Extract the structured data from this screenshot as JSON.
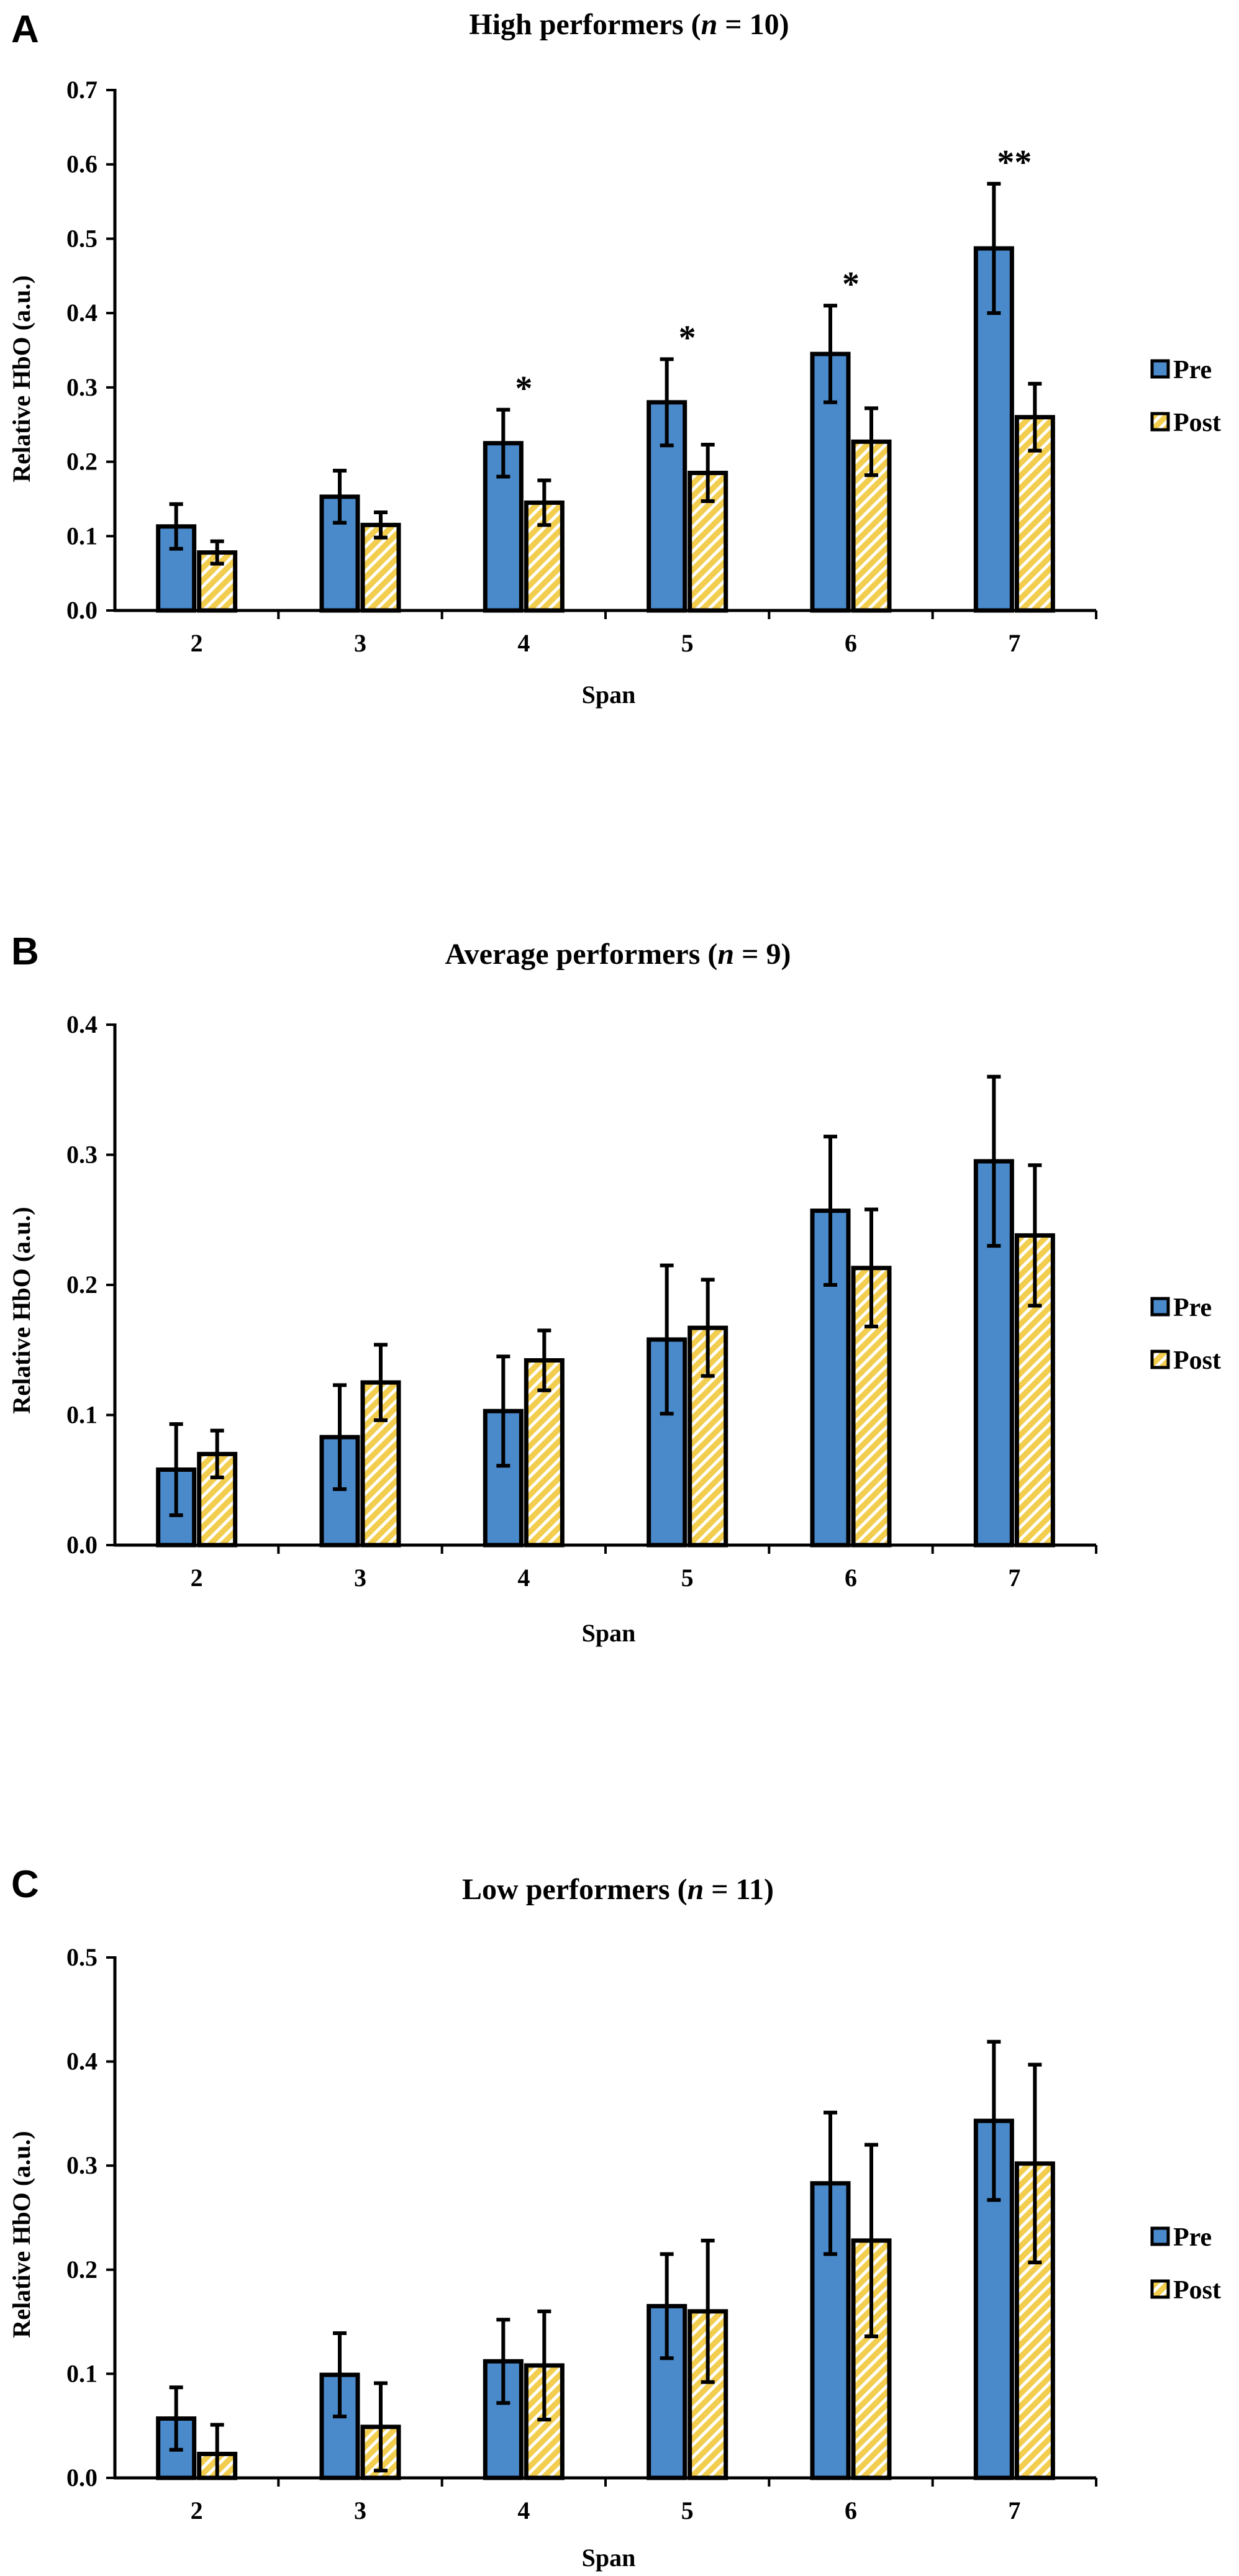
{
  "colors": {
    "pre": "#4a8acb",
    "post_fill": "#f2cd4e",
    "post_stripe": "#ffffff",
    "axis": "#000000"
  },
  "chart_data": [
    {
      "panel": "A",
      "type": "bar",
      "title": "High performers (",
      "title_italic": "n",
      "title_suffix": " = 10)",
      "xlabel": "Span",
      "ylabel": "Relative HbO (a.u.)",
      "ylim": [
        0,
        0.7
      ],
      "yticks": [
        "0.0",
        "0.1",
        "0.2",
        "0.3",
        "0.4",
        "0.5",
        "0.6",
        "0.7"
      ],
      "categories": [
        "2",
        "3",
        "4",
        "5",
        "6",
        "7"
      ],
      "series": [
        {
          "name": "Pre",
          "values": [
            0.113,
            0.153,
            0.225,
            0.28,
            0.345,
            0.487
          ],
          "errors": [
            0.03,
            0.035,
            0.045,
            0.058,
            0.065,
            0.087
          ]
        },
        {
          "name": "Post",
          "values": [
            0.078,
            0.115,
            0.145,
            0.185,
            0.227,
            0.26
          ],
          "errors": [
            0.015,
            0.017,
            0.03,
            0.038,
            0.045,
            0.045
          ]
        }
      ],
      "significance": [
        "",
        "",
        "*",
        "*",
        "*",
        "**"
      ],
      "legend_position": "right"
    },
    {
      "panel": "B",
      "type": "bar",
      "title": "Average performers (",
      "title_italic": "n",
      "title_suffix": " = 9)",
      "xlabel": "Span",
      "ylabel": "Relative HbO (a.u.)",
      "ylim": [
        0,
        0.4
      ],
      "yticks": [
        "0.0",
        "0.1",
        "0.2",
        "0.3",
        "0.4"
      ],
      "categories": [
        "2",
        "3",
        "4",
        "5",
        "6",
        "7"
      ],
      "series": [
        {
          "name": "Pre",
          "values": [
            0.058,
            0.083,
            0.103,
            0.158,
            0.257,
            0.295
          ],
          "errors": [
            0.035,
            0.04,
            0.042,
            0.057,
            0.057,
            0.065
          ]
        },
        {
          "name": "Post",
          "values": [
            0.07,
            0.125,
            0.142,
            0.167,
            0.213,
            0.238
          ],
          "errors": [
            0.018,
            0.029,
            0.023,
            0.037,
            0.045,
            0.054
          ]
        }
      ],
      "significance": [
        "",
        "",
        "",
        "",
        "",
        ""
      ],
      "legend_position": "right"
    },
    {
      "panel": "C",
      "type": "bar",
      "title": "Low performers (",
      "title_italic": "n",
      "title_suffix": " = 11)",
      "xlabel": "Span",
      "ylabel": "Relative HbO (a.u.)",
      "ylim": [
        0,
        0.5
      ],
      "yticks": [
        "0.0",
        "0.1",
        "0.2",
        "0.3",
        "0.4",
        "0.5"
      ],
      "categories": [
        "2",
        "3",
        "4",
        "5",
        "6",
        "7"
      ],
      "series": [
        {
          "name": "Pre",
          "values": [
            0.057,
            0.099,
            0.112,
            0.165,
            0.283,
            0.343
          ],
          "errors": [
            0.03,
            0.04,
            0.04,
            0.05,
            0.068,
            0.076
          ]
        },
        {
          "name": "Post",
          "values": [
            0.023,
            0.049,
            0.108,
            0.16,
            0.228,
            0.302
          ],
          "errors": [
            0.028,
            0.042,
            0.052,
            0.068,
            0.092,
            0.095
          ]
        }
      ],
      "significance": [
        "",
        "",
        "",
        "",
        "",
        ""
      ],
      "legend_position": "right"
    }
  ]
}
